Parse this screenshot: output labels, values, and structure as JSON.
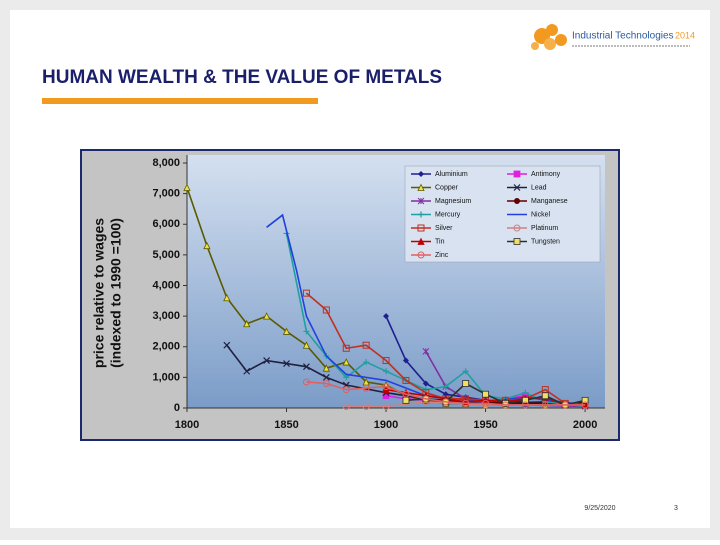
{
  "header": {
    "logo": "Industrial Technologies",
    "logo_year": "2014",
    "title": "HUMAN WEALTH & THE VALUE OF METALS"
  },
  "footer": {
    "date": "9/25/2020",
    "page": "3"
  },
  "chart_data": {
    "type": "line",
    "ylabel": [
      "price relative to wages",
      "(indexed to 1990 =100)"
    ],
    "xlim": [
      1800,
      2010
    ],
    "xticks": [
      1800,
      1850,
      1900,
      1950,
      2000
    ],
    "ylim": [
      0,
      8000
    ],
    "yticks": [
      0,
      {
        "value": 1000,
        "label": "1,000"
      },
      {
        "value": 2000,
        "label": "2,000"
      },
      {
        "value": 3000,
        "label": "3,000"
      },
      {
        "value": 4000,
        "label": "4,000"
      },
      {
        "value": 5000,
        "label": "5,000"
      },
      {
        "value": 6000,
        "label": "6,000"
      },
      {
        "value": 7000,
        "label": "7,000"
      },
      {
        "value": 8000,
        "label": "8,000"
      }
    ],
    "legend": "upper right",
    "series": [
      {
        "name": "Aluminium",
        "color": "#1f1f8f",
        "marker": "diamond",
        "x": [
          1900,
          1910,
          1920,
          1930,
          1940,
          1950,
          1960,
          1970,
          1980,
          1990,
          2000
        ],
        "values": [
          3000,
          1550,
          800,
          450,
          350,
          250,
          200,
          150,
          150,
          100,
          100
        ]
      },
      {
        "name": "Antimony",
        "color": "#e020e0",
        "marker": "square",
        "x": [
          1900,
          1910,
          1920,
          1950,
          1970,
          1980,
          2000
        ],
        "values": [
          400,
          300,
          250,
          200,
          400,
          250,
          100
        ]
      },
      {
        "name": "Copper",
        "color": "#5a5a00",
        "marker_color": "#f0e040",
        "marker": "triangle",
        "x": [
          1800,
          1810,
          1820,
          1830,
          1840,
          1850,
          1860,
          1870,
          1880,
          1890,
          1900,
          1910,
          1920,
          1930,
          1940,
          1950,
          1960,
          1970,
          1980,
          1990,
          2000
        ],
        "values": [
          7200,
          5300,
          3600,
          2750,
          3000,
          2500,
          2050,
          1300,
          1500,
          850,
          750,
          400,
          250,
          150,
          150,
          100,
          100,
          150,
          100,
          100,
          100
        ]
      },
      {
        "name": "Lead",
        "color": "#202040",
        "marker": "x",
        "x": [
          1820,
          1830,
          1840,
          1850,
          1860,
          1870,
          1880,
          1900,
          1920,
          1950,
          1980,
          2000
        ],
        "values": [
          2050,
          1200,
          1550,
          1450,
          1350,
          1000,
          750,
          500,
          300,
          150,
          200,
          100
        ]
      },
      {
        "name": "Magnesium",
        "color": "#8030a0",
        "marker": "star",
        "x": [
          1920,
          1930,
          1940,
          1950,
          1960,
          1970,
          2000
        ],
        "values": [
          1850,
          700,
          300,
          200,
          150,
          100,
          50
        ]
      },
      {
        "name": "Manganese",
        "color": "#600000",
        "marker": "circle",
        "x": [
          1950,
          1960,
          1980,
          1990,
          2000
        ],
        "values": [
          200,
          150,
          150,
          100,
          200
        ]
      },
      {
        "name": "Mercury",
        "color": "#20a0a0",
        "marker": "plus",
        "x": [
          1850,
          1860,
          1870,
          1880,
          1890,
          1900,
          1910,
          1920,
          1930,
          1940,
          1950,
          1960,
          1970,
          1980,
          2000
        ],
        "values": [
          5700,
          2500,
          1700,
          1000,
          1500,
          1200,
          900,
          600,
          700,
          1200,
          400,
          300,
          500,
          200,
          50
        ]
      },
      {
        "name": "Nickel",
        "color": "#2040e0",
        "marker": "none",
        "x": [
          1840,
          1848,
          1855,
          1860,
          1870,
          1880,
          1890,
          1900,
          1920,
          1950,
          1970,
          2000
        ],
        "values": [
          5900,
          6300,
          4500,
          3000,
          1700,
          1100,
          1000,
          900,
          400,
          200,
          350,
          100
        ]
      },
      {
        "name": "Silver",
        "color": "#c03020",
        "marker": "square-open",
        "x": [
          1860,
          1870,
          1880,
          1890,
          1900,
          1910,
          1920,
          1930,
          1940,
          1950,
          1960,
          1970,
          1980,
          1990,
          2000
        ],
        "values": [
          3750,
          3200,
          1950,
          2050,
          1550,
          900,
          500,
          300,
          300,
          250,
          250,
          300,
          600,
          150,
          100
        ]
      },
      {
        "name": "Platinum",
        "color": "#d08080",
        "marker": "circle-open",
        "x": [
          1880,
          1890,
          1900,
          1920,
          1950,
          2000
        ],
        "values": [
          50,
          50,
          50,
          200,
          100,
          100
        ]
      },
      {
        "name": "Tin",
        "color": "#c00000",
        "marker": "triangle",
        "x": [
          1900,
          1910,
          1920,
          1930,
          1940,
          1950,
          1960,
          1970,
          1980,
          1990,
          2000
        ],
        "values": [
          600,
          500,
          400,
          300,
          200,
          250,
          200,
          300,
          350,
          100,
          100
        ]
      },
      {
        "name": "Tungsten",
        "color": "#303030",
        "marker_color": "#f0e060",
        "marker": "square",
        "x": [
          1910,
          1920,
          1930,
          1940,
          1950,
          1960,
          1970,
          1980,
          1990,
          2000
        ],
        "values": [
          250,
          300,
          200,
          800,
          450,
          150,
          250,
          400,
          100,
          250
        ]
      },
      {
        "name": "Zinc",
        "color": "#e06060",
        "marker": "circle-open",
        "x": [
          1860,
          1870,
          1880,
          1890,
          1900,
          1910,
          1920,
          1930,
          1940,
          1950,
          1960,
          1970,
          1980,
          1990,
          2000
        ],
        "values": [
          850,
          800,
          600,
          650,
          700,
          450,
          300,
          200,
          150,
          150,
          100,
          100,
          100,
          100,
          100
        ]
      }
    ]
  }
}
